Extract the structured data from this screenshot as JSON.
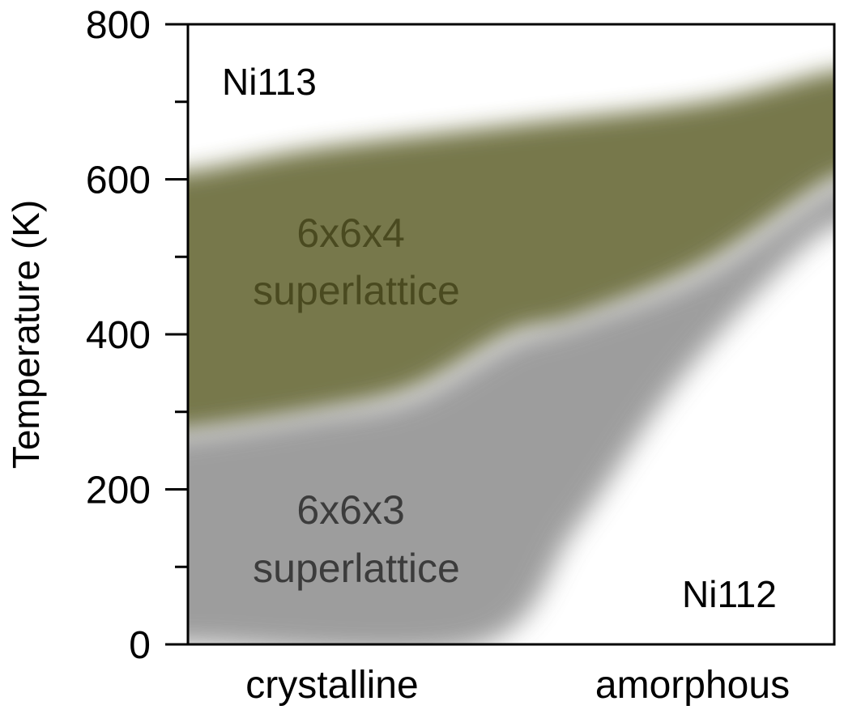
{
  "chart_data": {
    "type": "area",
    "title": "",
    "xlabel": "",
    "ylabel": "Temperature (K)",
    "ylim": [
      0,
      800
    ],
    "yticks": [
      0,
      200,
      400,
      600,
      800
    ],
    "yminor_ticks": [
      100,
      300,
      500,
      700
    ],
    "x_categories": [
      "crystalline",
      "amorphous"
    ],
    "grid": false,
    "regions": [
      {
        "name": "6x6x4 superlattice",
        "label_lines": [
          "6x6x4",
          "superlattice"
        ],
        "color": "#6f7142",
        "upper_boundary": [
          [
            0.0,
            610
          ],
          [
            0.2,
            640
          ],
          [
            0.5,
            670
          ],
          [
            0.8,
            700
          ],
          [
            1.0,
            740
          ]
        ],
        "lower_boundary": [
          [
            0.0,
            275
          ],
          [
            0.2,
            300
          ],
          [
            0.35,
            330
          ],
          [
            0.5,
            400
          ],
          [
            0.6,
            420
          ],
          [
            0.8,
            490
          ],
          [
            1.0,
            600
          ]
        ]
      },
      {
        "name": "6x6x3 superlattice",
        "label_lines": [
          "6x6x3",
          "superlattice"
        ],
        "color": "#8c8c8c",
        "upper_boundary": [
          [
            0.0,
            270
          ],
          [
            0.2,
            295
          ],
          [
            0.35,
            320
          ],
          [
            0.5,
            390
          ],
          [
            0.6,
            415
          ],
          [
            0.8,
            480
          ],
          [
            1.0,
            590
          ]
        ],
        "lower_boundary": [
          [
            0.0,
            0
          ],
          [
            0.45,
            0
          ],
          [
            0.6,
            150
          ],
          [
            0.75,
            330
          ],
          [
            0.9,
            470
          ],
          [
            1.0,
            540
          ]
        ]
      }
    ],
    "annotations": [
      {
        "text": "Ni113",
        "position": "top-left"
      },
      {
        "text": "Ni112",
        "position": "bottom-right"
      }
    ]
  },
  "colors": {
    "green_region": "#6f7142",
    "green_text": "#4a4a20",
    "gray_region": "#8c8c8c",
    "gray_text": "#3c3c3c"
  }
}
